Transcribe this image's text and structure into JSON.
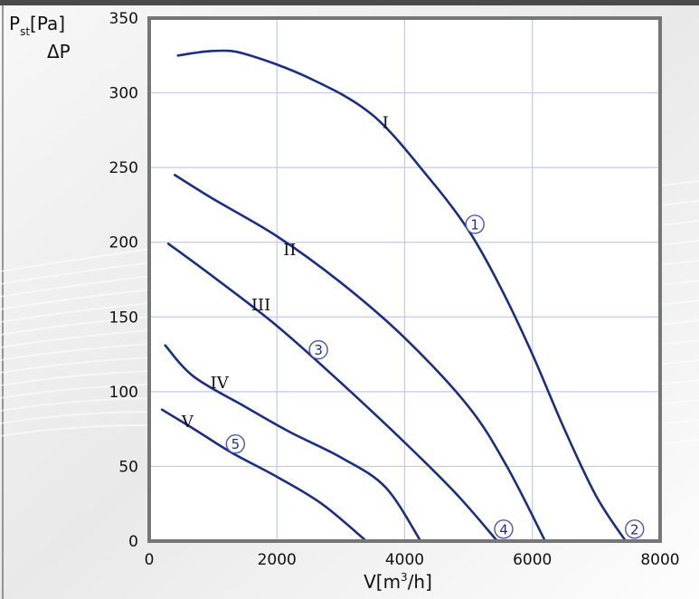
{
  "chart_data": {
    "type": "line",
    "title": "",
    "ylabel_main": "P",
    "ylabel_sub": "st",
    "ylabel_unit": "[Pa]",
    "ylabel_line2": "ΔP",
    "xlabel_main": "V[m",
    "xlabel_sup": "3",
    "xlabel_end": "/h]",
    "xlim": [
      0,
      8000
    ],
    "ylim": [
      0,
      350
    ],
    "xticks": [
      "0",
      "2000",
      "4000",
      "6000",
      "8000"
    ],
    "yticks": [
      "0",
      "50",
      "100",
      "150",
      "200",
      "250",
      "300",
      "350"
    ],
    "grid": true,
    "colors": {
      "curve": "#1a2e86",
      "grid": "#c4c8f0",
      "frame": "#767676",
      "marker": "#4a55b8"
    },
    "series": [
      {
        "name": "I",
        "label_at": [
          3700,
          280
        ],
        "points": [
          [
            450,
            325
          ],
          [
            1000,
            328
          ],
          [
            1500,
            326
          ],
          [
            2500,
            310
          ],
          [
            3500,
            285
          ],
          [
            4400,
            242
          ],
          [
            5000,
            208
          ],
          [
            5500,
            170
          ],
          [
            6000,
            125
          ],
          [
            6500,
            75
          ],
          [
            7000,
            30
          ],
          [
            7460,
            0
          ]
        ]
      },
      {
        "name": "II",
        "label_at": [
          2200,
          195
        ],
        "points": [
          [
            400,
            245
          ],
          [
            1000,
            229
          ],
          [
            2000,
            204
          ],
          [
            3000,
            173
          ],
          [
            4000,
            136
          ],
          [
            5000,
            90
          ],
          [
            5600,
            50
          ],
          [
            6200,
            0
          ]
        ]
      },
      {
        "name": "III",
        "label_at": [
          1750,
          158
        ],
        "points": [
          [
            300,
            199
          ],
          [
            1000,
            177
          ],
          [
            2000,
            144
          ],
          [
            3000,
            106
          ],
          [
            4000,
            66
          ],
          [
            4800,
            32
          ],
          [
            5450,
            0
          ]
        ]
      },
      {
        "name": "IV",
        "label_at": [
          1100,
          106
        ],
        "points": [
          [
            250,
            131
          ],
          [
            700,
            110
          ],
          [
            1500,
            90
          ],
          [
            2200,
            73
          ],
          [
            3000,
            56
          ],
          [
            3700,
            36
          ],
          [
            4250,
            0
          ]
        ]
      },
      {
        "name": "V",
        "label_at": [
          600,
          80
        ],
        "points": [
          [
            200,
            88
          ],
          [
            700,
            75
          ],
          [
            1300,
            59
          ],
          [
            2000,
            43
          ],
          [
            2700,
            25
          ],
          [
            3400,
            0
          ]
        ]
      }
    ],
    "markers": [
      {
        "label": "1",
        "at": [
          5100,
          212
        ]
      },
      {
        "label": "2",
        "at": [
          7600,
          8
        ]
      },
      {
        "label": "3",
        "at": [
          2650,
          128
        ]
      },
      {
        "label": "4",
        "at": [
          5550,
          8
        ]
      },
      {
        "label": "5",
        "at": [
          1350,
          65
        ]
      }
    ]
  }
}
